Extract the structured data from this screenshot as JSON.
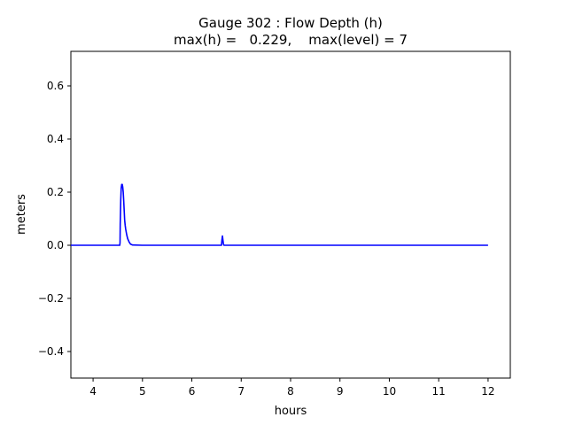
{
  "chart_data": {
    "type": "line",
    "title": "Gauge 302 : Flow Depth (h)",
    "subtitle": "max(h) =   0.229,    max(level) = 7",
    "xlabel": "hours",
    "ylabel": "meters",
    "xlim": [
      3.55,
      12.45
    ],
    "ylim": [
      -0.5,
      0.73
    ],
    "x_ticks": [
      4,
      5,
      6,
      7,
      8,
      9,
      10,
      11,
      12
    ],
    "x_tick_labels": [
      "4",
      "5",
      "6",
      "7",
      "8",
      "9",
      "10",
      "11",
      "12"
    ],
    "y_ticks": [
      -0.4,
      -0.2,
      0.0,
      0.2,
      0.4,
      0.6
    ],
    "y_tick_labels": [
      "−0.4",
      "−0.2",
      "0.0",
      "0.2",
      "0.4",
      "0.6"
    ],
    "grid": false,
    "series": [
      {
        "color": "#0000ff",
        "x": [
          3.55,
          4.0,
          4.5,
          4.54,
          4.545,
          4.55,
          4.56,
          4.57,
          4.58,
          4.59,
          4.6,
          4.61,
          4.62,
          4.63,
          4.64,
          4.65,
          4.66,
          4.68,
          4.7,
          4.73,
          4.76,
          4.8,
          5.0,
          6.0,
          6.6,
          6.61,
          6.62,
          6.63,
          6.64,
          6.65,
          7.0,
          8.0,
          9.0,
          10.0,
          11.0,
          12.0
        ],
        "y": [
          0.0,
          0.0,
          0.0,
          0.0,
          0.01,
          0.08,
          0.17,
          0.215,
          0.229,
          0.229,
          0.22,
          0.2,
          0.17,
          0.13,
          0.095,
          0.075,
          0.06,
          0.04,
          0.025,
          0.012,
          0.004,
          0.001,
          0.0,
          0.0,
          0.0,
          0.02,
          0.035,
          0.02,
          0.005,
          0.0,
          0.0,
          0.0,
          0.0,
          0.0,
          0.0,
          0.0
        ]
      }
    ]
  }
}
